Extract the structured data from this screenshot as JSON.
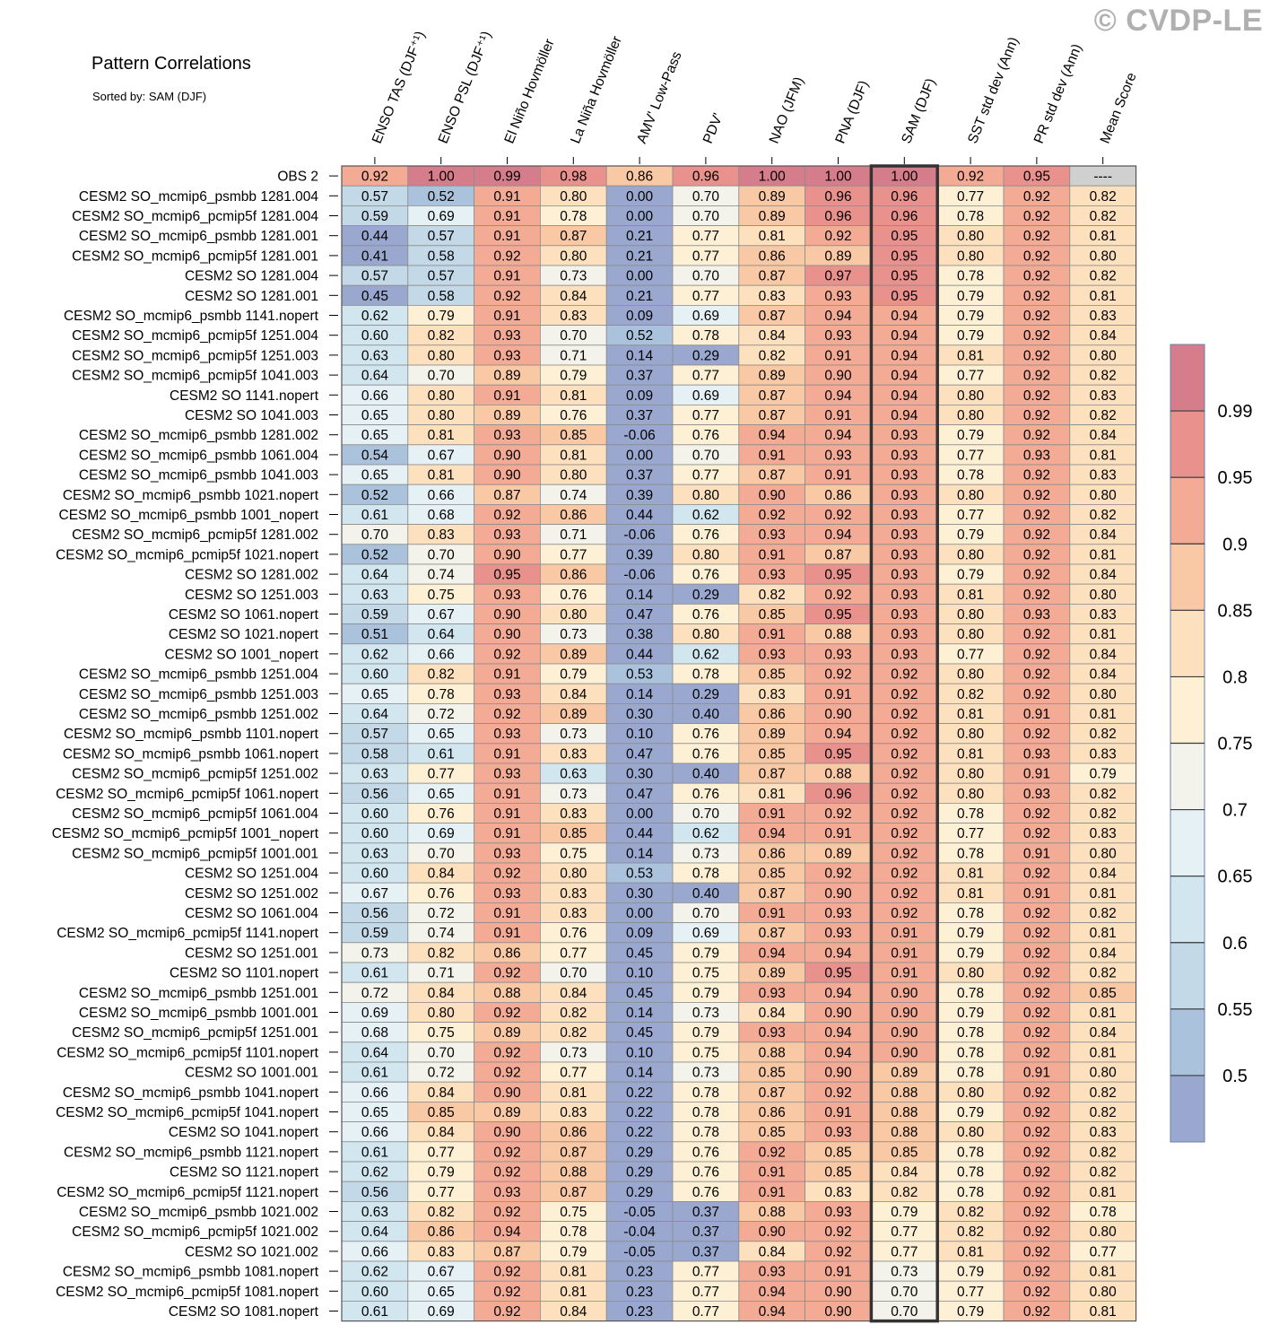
{
  "title": "Pattern Correlations",
  "subtitle": "Sorted by: SAM (DJF)",
  "watermark": "© CVDP-LE",
  "chart_data": {
    "type": "heatmap",
    "columns": [
      "ENSO TAS (DJF⁺¹)",
      "ENSO PSL (DJF⁺¹)",
      "El Niño Hovmöller",
      "La Niña Hovmöller",
      "AMV' Low-Pass",
      "PDV'",
      "NAO (JFM)",
      "PNA (DJF)",
      "SAM (DJF)",
      "SST std dev (Ann)",
      "PR std dev (Ann)",
      "Mean Score"
    ],
    "highlighted_column": "SAM (DJF)",
    "missing_label": "----",
    "rows": [
      {
        "label": "OBS 2",
        "values": [
          0.92,
          1.0,
          0.99,
          0.98,
          0.86,
          0.96,
          1.0,
          1.0,
          1.0,
          0.92,
          0.95,
          null
        ]
      },
      {
        "label": "CESM2 SO_mcmip6_psmbb 1281.004",
        "values": [
          0.57,
          0.52,
          0.91,
          0.8,
          -0.0,
          0.7,
          0.89,
          0.96,
          0.96,
          0.77,
          0.92,
          0.82
        ]
      },
      {
        "label": "CESM2 SO_mcmip6_pcmip5f 1281.004",
        "values": [
          0.59,
          0.69,
          0.91,
          0.78,
          -0.0,
          0.7,
          0.89,
          0.96,
          0.96,
          0.78,
          0.92,
          0.82
        ]
      },
      {
        "label": "CESM2 SO_mcmip6_psmbb 1281.001",
        "values": [
          0.44,
          0.57,
          0.91,
          0.87,
          0.21,
          0.77,
          0.81,
          0.92,
          0.95,
          0.8,
          0.92,
          0.81
        ]
      },
      {
        "label": "CESM2 SO_mcmip6_pcmip5f 1281.001",
        "values": [
          0.41,
          0.58,
          0.92,
          0.8,
          0.21,
          0.77,
          0.86,
          0.89,
          0.95,
          0.8,
          0.92,
          0.8
        ]
      },
      {
        "label": "CESM2 SO 1281.004",
        "values": [
          0.57,
          0.57,
          0.91,
          0.73,
          -0.0,
          0.7,
          0.87,
          0.97,
          0.95,
          0.78,
          0.92,
          0.82
        ]
      },
      {
        "label": "CESM2 SO 1281.001",
        "values": [
          0.45,
          0.58,
          0.92,
          0.84,
          0.21,
          0.77,
          0.83,
          0.93,
          0.95,
          0.79,
          0.92,
          0.81
        ]
      },
      {
        "label": "CESM2 SO_mcmip6_psmbb 1141.nopert",
        "values": [
          0.62,
          0.79,
          0.91,
          0.83,
          0.09,
          0.69,
          0.87,
          0.94,
          0.94,
          0.79,
          0.92,
          0.83
        ]
      },
      {
        "label": "CESM2 SO_mcmip6_pcmip5f 1251.004",
        "values": [
          0.6,
          0.82,
          0.93,
          0.7,
          0.52,
          0.78,
          0.84,
          0.93,
          0.94,
          0.79,
          0.92,
          0.84
        ]
      },
      {
        "label": "CESM2 SO_mcmip6_pcmip5f 1251.003",
        "values": [
          0.63,
          0.8,
          0.93,
          0.71,
          0.14,
          0.29,
          0.82,
          0.91,
          0.94,
          0.81,
          0.92,
          0.8
        ]
      },
      {
        "label": "CESM2 SO_mcmip6_pcmip5f 1041.003",
        "values": [
          0.64,
          0.7,
          0.89,
          0.79,
          0.37,
          0.77,
          0.89,
          0.9,
          0.94,
          0.77,
          0.92,
          0.82
        ]
      },
      {
        "label": "CESM2 SO 1141.nopert",
        "values": [
          0.66,
          0.8,
          0.91,
          0.81,
          0.09,
          0.69,
          0.87,
          0.94,
          0.94,
          0.8,
          0.92,
          0.83
        ]
      },
      {
        "label": "CESM2 SO 1041.003",
        "values": [
          0.65,
          0.8,
          0.89,
          0.76,
          0.37,
          0.77,
          0.87,
          0.91,
          0.94,
          0.8,
          0.92,
          0.82
        ]
      },
      {
        "label": "CESM2 SO_mcmip6_psmbb 1281.002",
        "values": [
          0.65,
          0.81,
          0.93,
          0.85,
          -0.06,
          0.76,
          0.94,
          0.94,
          0.93,
          0.79,
          0.92,
          0.84
        ]
      },
      {
        "label": "CESM2 SO_mcmip6_psmbb 1061.004",
        "values": [
          0.54,
          0.67,
          0.9,
          0.81,
          -0.0,
          0.7,
          0.91,
          0.93,
          0.93,
          0.77,
          0.93,
          0.81
        ]
      },
      {
        "label": "CESM2 SO_mcmip6_psmbb 1041.003",
        "values": [
          0.65,
          0.81,
          0.9,
          0.8,
          0.37,
          0.77,
          0.87,
          0.91,
          0.93,
          0.78,
          0.92,
          0.83
        ]
      },
      {
        "label": "CESM2 SO_mcmip6_psmbb 1021.nopert",
        "values": [
          0.52,
          0.66,
          0.87,
          0.74,
          0.39,
          0.8,
          0.9,
          0.86,
          0.93,
          0.8,
          0.92,
          0.8
        ]
      },
      {
        "label": "CESM2 SO_mcmip6_psmbb 1001_nopert",
        "values": [
          0.61,
          0.68,
          0.92,
          0.86,
          0.44,
          0.62,
          0.92,
          0.92,
          0.93,
          0.77,
          0.92,
          0.82
        ]
      },
      {
        "label": "CESM2 SO_mcmip6_pcmip5f 1281.002",
        "values": [
          0.7,
          0.83,
          0.93,
          0.71,
          -0.06,
          0.76,
          0.93,
          0.94,
          0.93,
          0.79,
          0.92,
          0.84
        ]
      },
      {
        "label": "CESM2 SO_mcmip6_pcmip5f 1021.nopert",
        "values": [
          0.52,
          0.7,
          0.9,
          0.77,
          0.39,
          0.8,
          0.91,
          0.87,
          0.93,
          0.8,
          0.92,
          0.81
        ]
      },
      {
        "label": "CESM2 SO 1281.002",
        "values": [
          0.64,
          0.74,
          0.95,
          0.86,
          -0.06,
          0.76,
          0.93,
          0.95,
          0.93,
          0.79,
          0.92,
          0.84
        ]
      },
      {
        "label": "CESM2 SO 1251.003",
        "values": [
          0.63,
          0.75,
          0.93,
          0.76,
          0.14,
          0.29,
          0.82,
          0.92,
          0.93,
          0.81,
          0.92,
          0.8
        ]
      },
      {
        "label": "CESM2 SO 1061.nopert",
        "values": [
          0.59,
          0.67,
          0.9,
          0.8,
          0.47,
          0.76,
          0.85,
          0.95,
          0.93,
          0.8,
          0.93,
          0.83
        ]
      },
      {
        "label": "CESM2 SO 1021.nopert",
        "values": [
          0.51,
          0.64,
          0.9,
          0.73,
          0.38,
          0.8,
          0.91,
          0.88,
          0.93,
          0.8,
          0.92,
          0.81
        ]
      },
      {
        "label": "CESM2 SO 1001_nopert",
        "values": [
          0.62,
          0.66,
          0.92,
          0.89,
          0.44,
          0.62,
          0.93,
          0.93,
          0.93,
          0.77,
          0.92,
          0.84
        ]
      },
      {
        "label": "CESM2 SO_mcmip6_psmbb 1251.004",
        "values": [
          0.6,
          0.82,
          0.91,
          0.79,
          0.53,
          0.78,
          0.85,
          0.92,
          0.92,
          0.8,
          0.92,
          0.84
        ]
      },
      {
        "label": "CESM2 SO_mcmip6_psmbb 1251.003",
        "values": [
          0.65,
          0.78,
          0.93,
          0.84,
          0.14,
          0.29,
          0.83,
          0.91,
          0.92,
          0.82,
          0.92,
          0.8
        ]
      },
      {
        "label": "CESM2 SO_mcmip6_psmbb 1251.002",
        "values": [
          0.64,
          0.72,
          0.92,
          0.89,
          0.3,
          0.4,
          0.86,
          0.9,
          0.92,
          0.81,
          0.91,
          0.81
        ]
      },
      {
        "label": "CESM2 SO_mcmip6_psmbb 1101.nopert",
        "values": [
          0.57,
          0.65,
          0.93,
          0.73,
          0.1,
          0.76,
          0.89,
          0.94,
          0.92,
          0.8,
          0.92,
          0.82
        ]
      },
      {
        "label": "CESM2 SO_mcmip6_psmbb 1061.nopert",
        "values": [
          0.58,
          0.61,
          0.91,
          0.83,
          0.47,
          0.76,
          0.85,
          0.95,
          0.92,
          0.81,
          0.93,
          0.83
        ]
      },
      {
        "label": "CESM2 SO_mcmip6_pcmip5f 1251.002",
        "values": [
          0.63,
          0.77,
          0.93,
          0.63,
          0.3,
          0.4,
          0.87,
          0.88,
          0.92,
          0.8,
          0.91,
          0.79
        ]
      },
      {
        "label": "CESM2 SO_mcmip6_pcmip5f 1061.nopert",
        "values": [
          0.56,
          0.65,
          0.91,
          0.73,
          0.47,
          0.76,
          0.81,
          0.96,
          0.92,
          0.8,
          0.93,
          0.82
        ]
      },
      {
        "label": "CESM2 SO_mcmip6_pcmip5f 1061.004",
        "values": [
          0.6,
          0.76,
          0.91,
          0.83,
          -0.0,
          0.7,
          0.91,
          0.92,
          0.92,
          0.78,
          0.92,
          0.82
        ]
      },
      {
        "label": "CESM2 SO_mcmip6_pcmip5f 1001_nopert",
        "values": [
          0.6,
          0.69,
          0.91,
          0.85,
          0.44,
          0.62,
          0.94,
          0.91,
          0.92,
          0.77,
          0.92,
          0.83
        ]
      },
      {
        "label": "CESM2 SO_mcmip6_pcmip5f 1001.001",
        "values": [
          0.63,
          0.7,
          0.93,
          0.75,
          0.14,
          0.73,
          0.86,
          0.89,
          0.92,
          0.78,
          0.91,
          0.8
        ]
      },
      {
        "label": "CESM2 SO 1251.004",
        "values": [
          0.6,
          0.84,
          0.92,
          0.8,
          0.53,
          0.78,
          0.85,
          0.92,
          0.92,
          0.81,
          0.92,
          0.84
        ]
      },
      {
        "label": "CESM2 SO 1251.002",
        "values": [
          0.67,
          0.76,
          0.93,
          0.83,
          0.3,
          0.4,
          0.87,
          0.9,
          0.92,
          0.81,
          0.91,
          0.81
        ]
      },
      {
        "label": "CESM2 SO 1061.004",
        "values": [
          0.56,
          0.72,
          0.91,
          0.83,
          -0.0,
          0.7,
          0.91,
          0.93,
          0.92,
          0.78,
          0.92,
          0.82
        ]
      },
      {
        "label": "CESM2 SO_mcmip6_pcmip5f 1141.nopert",
        "values": [
          0.59,
          0.74,
          0.91,
          0.76,
          0.09,
          0.69,
          0.87,
          0.93,
          0.91,
          0.79,
          0.92,
          0.81
        ]
      },
      {
        "label": "CESM2 SO 1251.001",
        "values": [
          0.73,
          0.82,
          0.86,
          0.77,
          0.45,
          0.79,
          0.94,
          0.94,
          0.91,
          0.79,
          0.92,
          0.84
        ]
      },
      {
        "label": "CESM2 SO 1101.nopert",
        "values": [
          0.61,
          0.71,
          0.92,
          0.7,
          0.1,
          0.75,
          0.89,
          0.95,
          0.91,
          0.8,
          0.92,
          0.82
        ]
      },
      {
        "label": "CESM2 SO_mcmip6_psmbb 1251.001",
        "values": [
          0.72,
          0.84,
          0.88,
          0.84,
          0.45,
          0.79,
          0.93,
          0.94,
          0.9,
          0.78,
          0.92,
          0.85
        ]
      },
      {
        "label": "CESM2 SO_mcmip6_psmbb 1001.001",
        "values": [
          0.69,
          0.8,
          0.92,
          0.82,
          0.14,
          0.73,
          0.84,
          0.9,
          0.9,
          0.79,
          0.92,
          0.81
        ]
      },
      {
        "label": "CESM2 SO_mcmip6_pcmip5f 1251.001",
        "values": [
          0.68,
          0.75,
          0.89,
          0.82,
          0.45,
          0.79,
          0.93,
          0.94,
          0.9,
          0.78,
          0.92,
          0.84
        ]
      },
      {
        "label": "CESM2 SO_mcmip6_pcmip5f 1101.nopert",
        "values": [
          0.64,
          0.7,
          0.92,
          0.73,
          0.1,
          0.75,
          0.88,
          0.94,
          0.9,
          0.78,
          0.92,
          0.81
        ]
      },
      {
        "label": "CESM2 SO 1001.001",
        "values": [
          0.61,
          0.72,
          0.92,
          0.77,
          0.14,
          0.73,
          0.85,
          0.9,
          0.89,
          0.78,
          0.91,
          0.8
        ]
      },
      {
        "label": "CESM2 SO_mcmip6_psmbb 1041.nopert",
        "values": [
          0.66,
          0.84,
          0.9,
          0.81,
          0.22,
          0.78,
          0.87,
          0.92,
          0.88,
          0.8,
          0.92,
          0.82
        ]
      },
      {
        "label": "CESM2 SO_mcmip6_pcmip5f 1041.nopert",
        "values": [
          0.65,
          0.85,
          0.89,
          0.83,
          0.22,
          0.78,
          0.86,
          0.91,
          0.88,
          0.79,
          0.92,
          0.82
        ]
      },
      {
        "label": "CESM2 SO 1041.nopert",
        "values": [
          0.66,
          0.84,
          0.9,
          0.86,
          0.22,
          0.78,
          0.85,
          0.93,
          0.88,
          0.8,
          0.92,
          0.83
        ]
      },
      {
        "label": "CESM2 SO_mcmip6_psmbb 1121.nopert",
        "values": [
          0.61,
          0.77,
          0.92,
          0.87,
          0.29,
          0.76,
          0.92,
          0.85,
          0.85,
          0.78,
          0.92,
          0.82
        ]
      },
      {
        "label": "CESM2 SO 1121.nopert",
        "values": [
          0.62,
          0.79,
          0.92,
          0.88,
          0.29,
          0.76,
          0.91,
          0.85,
          0.84,
          0.78,
          0.92,
          0.82
        ]
      },
      {
        "label": "CESM2 SO_mcmip6_pcmip5f 1121.nopert",
        "values": [
          0.56,
          0.77,
          0.93,
          0.87,
          0.29,
          0.76,
          0.91,
          0.83,
          0.82,
          0.78,
          0.92,
          0.81
        ]
      },
      {
        "label": "CESM2 SO_mcmip6_psmbb 1021.002",
        "values": [
          0.63,
          0.82,
          0.92,
          0.75,
          -0.05,
          0.37,
          0.88,
          0.93,
          0.79,
          0.82,
          0.92,
          0.78
        ]
      },
      {
        "label": "CESM2 SO_mcmip6_pcmip5f 1021.002",
        "values": [
          0.64,
          0.86,
          0.94,
          0.78,
          -0.04,
          0.37,
          0.9,
          0.92,
          0.77,
          0.82,
          0.92,
          0.8
        ]
      },
      {
        "label": "CESM2 SO 1021.002",
        "values": [
          0.66,
          0.83,
          0.87,
          0.79,
          -0.05,
          0.37,
          0.84,
          0.92,
          0.77,
          0.81,
          0.92,
          0.77
        ]
      },
      {
        "label": "CESM2 SO_mcmip6_psmbb 1081.nopert",
        "values": [
          0.62,
          0.67,
          0.92,
          0.81,
          0.23,
          0.77,
          0.93,
          0.91,
          0.73,
          0.79,
          0.92,
          0.81
        ]
      },
      {
        "label": "CESM2 SO_mcmip6_pcmip5f 1081.nopert",
        "values": [
          0.6,
          0.65,
          0.92,
          0.81,
          0.23,
          0.77,
          0.94,
          0.9,
          0.7,
          0.77,
          0.92,
          0.8
        ]
      },
      {
        "label": "CESM2 SO 1081.nopert",
        "values": [
          0.61,
          0.69,
          0.92,
          0.84,
          0.23,
          0.77,
          0.94,
          0.9,
          0.7,
          0.79,
          0.92,
          0.81
        ]
      }
    ],
    "colorbar": {
      "labels": [
        "0.99",
        "0.95",
        "0.9",
        "0.85",
        "0.8",
        "0.75",
        "0.7",
        "0.65",
        "0.6",
        "0.55",
        "0.5"
      ],
      "thresholds": [
        0.5,
        0.55,
        0.6,
        0.65,
        0.7,
        0.75,
        0.8,
        0.85,
        0.9,
        0.95,
        0.99
      ],
      "colors": [
        "#9aa8cf",
        "#abc2dc",
        "#c3d9e8",
        "#d2e6f0",
        "#e6f1f6",
        "#f3f3eb",
        "#fdf0d4",
        "#fde0bd",
        "#f9c8a4",
        "#f3ab95",
        "#e9918c",
        "#d67d8c"
      ],
      "missing_color": "#d0d0d0"
    }
  }
}
